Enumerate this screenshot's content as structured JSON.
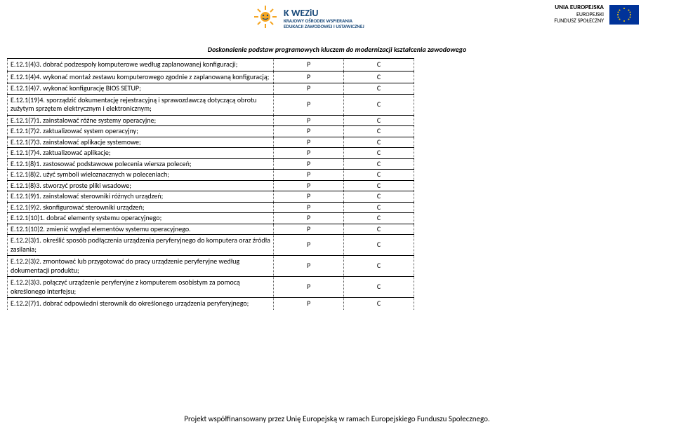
{
  "header": {
    "left_logo_big": "K WEZiU",
    "left_logo_lines": [
      "KRAJOWY OŚRODEK WSPIERANIA",
      "EDUKACJI ZAWODOWEJ I USTAWICZNEJ"
    ],
    "right_lines": [
      "UNIA EUROPEJSKA",
      "EUROPEJSKI",
      "FUNDUSZ SPOŁECZNY"
    ]
  },
  "subheader": "Doskonalenie podstaw programowych kluczem do modernizacji kształcenia zawodowego",
  "rows": [
    {
      "text": "E.12.1(4)3. dobrać podzespoły komputerowe według zaplanowanej konfiguracji;",
      "p": "P",
      "c": "C",
      "multi": true
    },
    {
      "text": "E.12.1(4)4. wykonać montaż zestawu komputerowego zgodnie z zaplanowaną konfiguracją;",
      "p": "P",
      "c": "C",
      "multi": true
    },
    {
      "text": "E.12.1(4)7. wykonać konfigurację BIOS SETUP;",
      "p": "P",
      "c": "C"
    },
    {
      "text": "E.12.1(19)4. sporządzić dokumentację rejestracyjną i sprawozdawczą dotyczącą obrotu zużytym sprzętem elektrycznym i elektronicznym;",
      "p": "P",
      "c": "C",
      "multi": true
    },
    {
      "text": "E.12.1(7)1. zainstalować różne systemy operacyjne;",
      "p": "P",
      "c": "C"
    },
    {
      "text": "E.12.1(7)2. zaktualizować system operacyjny;",
      "p": "P",
      "c": "C"
    },
    {
      "text": "E.12.1(7)3. zainstalować aplikacje systemowe;",
      "p": "P",
      "c": "C"
    },
    {
      "text": "E.12.1(7)4. zaktualizować aplikacje;",
      "p": "P",
      "c": "C"
    },
    {
      "text": "E.12.1(8)1. zastosować podstawowe polecenia wiersza poleceń;",
      "p": "P",
      "c": "C"
    },
    {
      "text": "E.12.1(8)2. użyć symboli wieloznacznych w poleceniach;",
      "p": "P",
      "c": "C"
    },
    {
      "text": "E.12.1(8)3. stworzyć proste pliki wsadowe;",
      "p": "P",
      "c": "C"
    },
    {
      "text": "E.12.1(9)1. zainstalować sterowniki różnych urządzeń;",
      "p": "P",
      "c": "C"
    },
    {
      "text": "E.12.1(9)2. skonfigurować sterowniki urządzeń;",
      "p": "P",
      "c": "C"
    },
    {
      "text": "E.12.1(10)1. dobrać elementy systemu operacyjnego;",
      "p": "P",
      "c": "C"
    },
    {
      "text": "E.12.1(10)2. zmienić wygląd elementów systemu operacyjnego.",
      "p": "P",
      "c": "C"
    },
    {
      "text": "E.12.2(3)1. określić sposób podłączenia urządzenia peryferyjnego do komputera oraz źródła zasilania;",
      "p": "P",
      "c": "C",
      "multi": true
    },
    {
      "text": "E.12.2(3)2. zmontować lub przygotować do pracy urządzenie peryferyjne według dokumentacji produktu;",
      "p": "P",
      "c": "C",
      "multi": true
    },
    {
      "text": "E.12.2(3)3. połączyć urządzenie peryferyjne z komputerem osobistym za pomocą określonego interfejsu;",
      "p": "P",
      "c": "C",
      "multi": true
    },
    {
      "text": "E.12.2(7)1. dobrać odpowiedni sterownik do określonego urządzenia peryferyjnego;",
      "p": "P",
      "c": "C",
      "multi": true
    }
  ],
  "footer": "Projekt współfinansowany przez Unię Europejską w ramach Europejskiego Funduszu Społecznego.",
  "colors": {
    "eu_blue": "#003399",
    "eu_gold": "#ffcc00",
    "logo_blue": "#1a4a7a",
    "logo_orange": "#f5a623"
  }
}
